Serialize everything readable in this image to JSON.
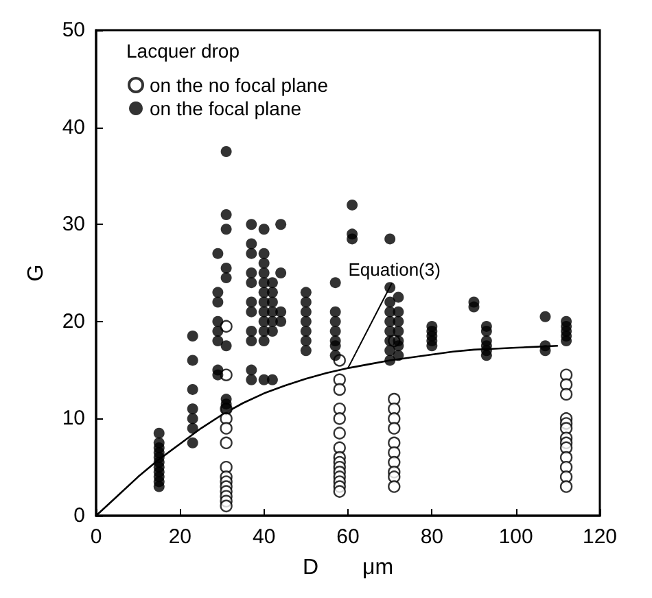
{
  "chart_data": {
    "type": "scatter",
    "xlabel": "D　　μm",
    "ylabel": "G",
    "legend_title": "Lacquer drop",
    "legend": "top left",
    "grid": false,
    "marker": "circle",
    "xlim": [
      0,
      120
    ],
    "xticks": [
      0,
      20,
      40,
      60,
      80,
      100,
      120
    ],
    "ylim": [
      0,
      50
    ],
    "yticks": [
      0,
      10,
      20,
      30,
      40,
      50
    ],
    "series": [
      {
        "name": "on the no focal plane",
        "color": "#ffffff",
        "x": [
          31,
          31,
          31,
          31,
          31,
          31,
          31,
          31,
          31,
          31,
          31,
          31,
          31,
          31,
          58,
          58,
          58,
          58,
          58,
          58,
          58,
          58,
          58,
          58,
          58,
          58,
          58,
          58,
          58,
          71,
          71,
          71,
          71,
          71,
          71,
          71,
          71,
          71,
          71,
          71,
          112,
          112,
          112,
          112,
          112,
          112,
          112,
          112,
          112,
          112,
          112,
          112,
          112
        ],
        "values": [
          19.5,
          14.5,
          11,
          10,
          9,
          7.5,
          5,
          4,
          3.5,
          3,
          2.5,
          2,
          1.5,
          1,
          16,
          14,
          13,
          11,
          10,
          8.5,
          7,
          6,
          5.5,
          5,
          4.5,
          4,
          3.5,
          3,
          2.5,
          18,
          12,
          11,
          10,
          9,
          7.5,
          6.5,
          5.5,
          4.5,
          4,
          3,
          14.5,
          13.5,
          12.5,
          10,
          9.5,
          9,
          8,
          7.5,
          7,
          6,
          5,
          4,
          3
        ]
      },
      {
        "name": "on the focal plane",
        "color": "#000000",
        "x": [
          15,
          15,
          15,
          15,
          15,
          15,
          15,
          15,
          15,
          15,
          15,
          23,
          23,
          23,
          23,
          23,
          23,
          23,
          29,
          29,
          29,
          29,
          29,
          29,
          29,
          29,
          31,
          31,
          31,
          31,
          31,
          31,
          31,
          31,
          31,
          37,
          37,
          37,
          37,
          37,
          37,
          37,
          37,
          37,
          37,
          37,
          40,
          40,
          40,
          40,
          40,
          40,
          40,
          40,
          40,
          40,
          40,
          40,
          42,
          42,
          42,
          42,
          42,
          42,
          42,
          44,
          44,
          44,
          44,
          50,
          50,
          50,
          50,
          50,
          50,
          50,
          57,
          57,
          57,
          57,
          57,
          57,
          57,
          61,
          61,
          61,
          70,
          70,
          70,
          70,
          70,
          70,
          70,
          70,
          70,
          72,
          72,
          72,
          72,
          72,
          72,
          72,
          80,
          80,
          80,
          80,
          80,
          90,
          90,
          93,
          93,
          93,
          93,
          93,
          93,
          107,
          107,
          107,
          112,
          112,
          112,
          112,
          112
        ],
        "values": [
          8.5,
          7.5,
          7,
          6.5,
          6,
          5.5,
          5,
          4.5,
          4,
          3.5,
          3,
          18.5,
          16,
          13,
          11,
          10,
          9,
          7.5,
          27,
          23,
          22,
          20,
          19,
          18,
          15,
          14.5,
          37.5,
          31,
          29.5,
          25.5,
          24.5,
          17.5,
          12,
          11.5,
          11,
          30,
          28,
          27,
          25,
          24,
          22,
          21,
          19,
          18,
          15,
          14,
          29.5,
          27,
          26,
          25,
          24,
          23,
          22,
          21,
          20,
          19,
          18,
          14,
          24,
          23,
          22,
          21,
          20,
          19,
          14,
          30,
          25,
          21,
          20,
          23,
          22,
          21,
          20,
          19,
          18,
          17,
          24,
          21,
          20,
          19,
          18,
          17.5,
          16.5,
          32,
          29,
          28.5,
          28.5,
          23.5,
          22,
          21,
          20,
          19,
          18,
          17,
          16,
          22.5,
          21,
          20,
          19,
          18,
          17.5,
          16.5,
          19.5,
          19,
          18.5,
          18,
          17.5,
          22,
          21.5,
          19.5,
          19,
          18,
          17.5,
          17,
          16.5,
          20.5,
          17.5,
          17,
          20,
          19.5,
          19,
          18.5,
          18
        ]
      },
      {
        "type": "line",
        "color": "#000000",
        "marker": "none",
        "line_style": "solid",
        "x": [
          0,
          5,
          10,
          15,
          20,
          25,
          30,
          35,
          40,
          45,
          50,
          55,
          60,
          65,
          70,
          75,
          80,
          85,
          90,
          95,
          100,
          105,
          110
        ],
        "values": [
          0,
          2,
          4,
          5.8,
          7.4,
          9,
          10.4,
          11.6,
          12.6,
          13.4,
          14.1,
          14.7,
          15.2,
          15.6,
          16,
          16.3,
          16.6,
          16.9,
          17.1,
          17.2,
          17.3,
          17.4,
          17.5
        ]
      }
    ],
    "annotations": [
      {
        "text": "Equation(3)",
        "x": 60,
        "y": 15.2
      }
    ]
  }
}
